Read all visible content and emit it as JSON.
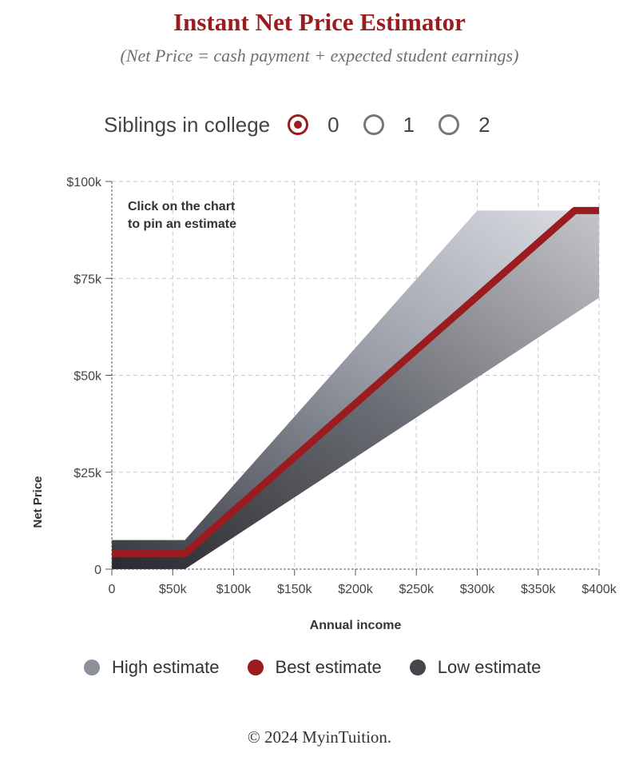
{
  "title": "Instant Net Price Estimator",
  "subtitle": "(Net Price = cash payment + expected student earnings)",
  "siblings": {
    "label": "Siblings in college",
    "options": [
      "0",
      "1",
      "2"
    ],
    "selected": "0"
  },
  "legend": {
    "high": "High estimate",
    "best": "Best estimate",
    "low": "Low estimate"
  },
  "colors": {
    "accent": "#9b1c1f",
    "high": "#8c9099",
    "best": "#9b1c1f",
    "low": "#45474d"
  },
  "footer": "© 2024 MyinTuition.",
  "chart_data": {
    "type": "area",
    "ylabel": "Net Price",
    "xlabel": "Annual income",
    "annotation": "Click on the chart\nto pin an estimate",
    "xlim": [
      0,
      400000
    ],
    "ylim": [
      0,
      100000
    ],
    "x_ticks": [
      0,
      50000,
      100000,
      150000,
      200000,
      250000,
      300000,
      350000,
      400000
    ],
    "x_tick_labels": [
      "0",
      "$50k",
      "$100k",
      "$150k",
      "$200k",
      "$250k",
      "$300k",
      "$350k",
      "$400k"
    ],
    "y_ticks": [
      0,
      25000,
      50000,
      75000,
      100000
    ],
    "y_tick_labels": [
      "0",
      "$25k",
      "$50k",
      "$75k",
      "$100k"
    ],
    "grid": true,
    "series": [
      {
        "name": "High estimate",
        "x": [
          0,
          60000,
          300000,
          400000
        ],
        "y": [
          7500,
          7500,
          92500,
          92500
        ]
      },
      {
        "name": "Best estimate",
        "x": [
          0,
          60000,
          380000,
          400000
        ],
        "y": [
          4000,
          4000,
          92500,
          92500
        ]
      },
      {
        "name": "Low estimate",
        "x": [
          0,
          60000,
          400000
        ],
        "y": [
          0,
          0,
          70000
        ]
      }
    ]
  }
}
